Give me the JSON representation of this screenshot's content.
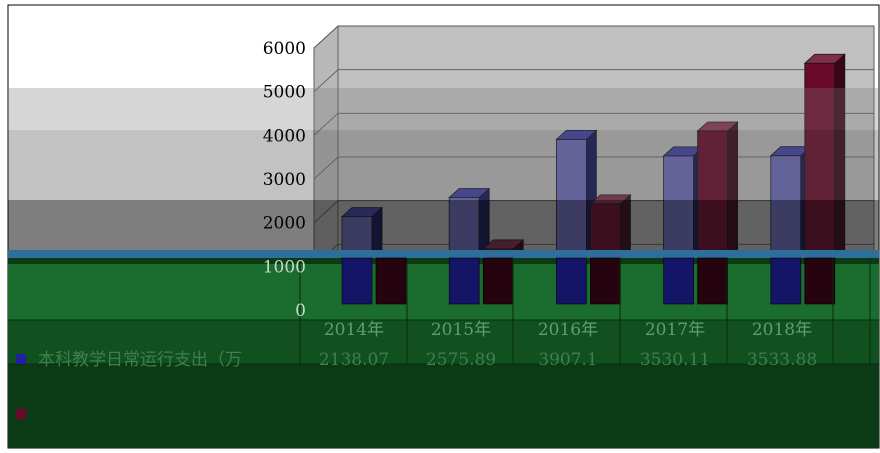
{
  "chart_data": {
    "type": "bar",
    "categories": [
      "2014年",
      "2015年",
      "2016年",
      "2017年",
      "2018年"
    ],
    "series": [
      {
        "name": "本科教学日常运行支出（万",
        "values": [
          2138.07,
          2575.89,
          3907.1,
          3530.11,
          3533.88
        ],
        "color": "#2020a0"
      },
      {
        "name": "",
        "values": [
          1000,
          1400,
          2430,
          4100,
          5650
        ],
        "color": "#6a0a2a"
      }
    ],
    "y_ticks": [
      "0",
      "1000",
      "2000",
      "3000",
      "4000",
      "5000",
      "6000"
    ],
    "ylim": [
      0,
      6000
    ],
    "table": {
      "rows": [
        {
          "label": "本科教学日常运行支出（万",
          "values": [
            "2138.07",
            "2575.89",
            "3907.1",
            "3530.11",
            "3533.88"
          ]
        },
        {
          "label": "",
          "values": [
            "",
            "",
            "",
            "",
            ""
          ]
        }
      ]
    },
    "grid": true,
    "view": "3d"
  }
}
